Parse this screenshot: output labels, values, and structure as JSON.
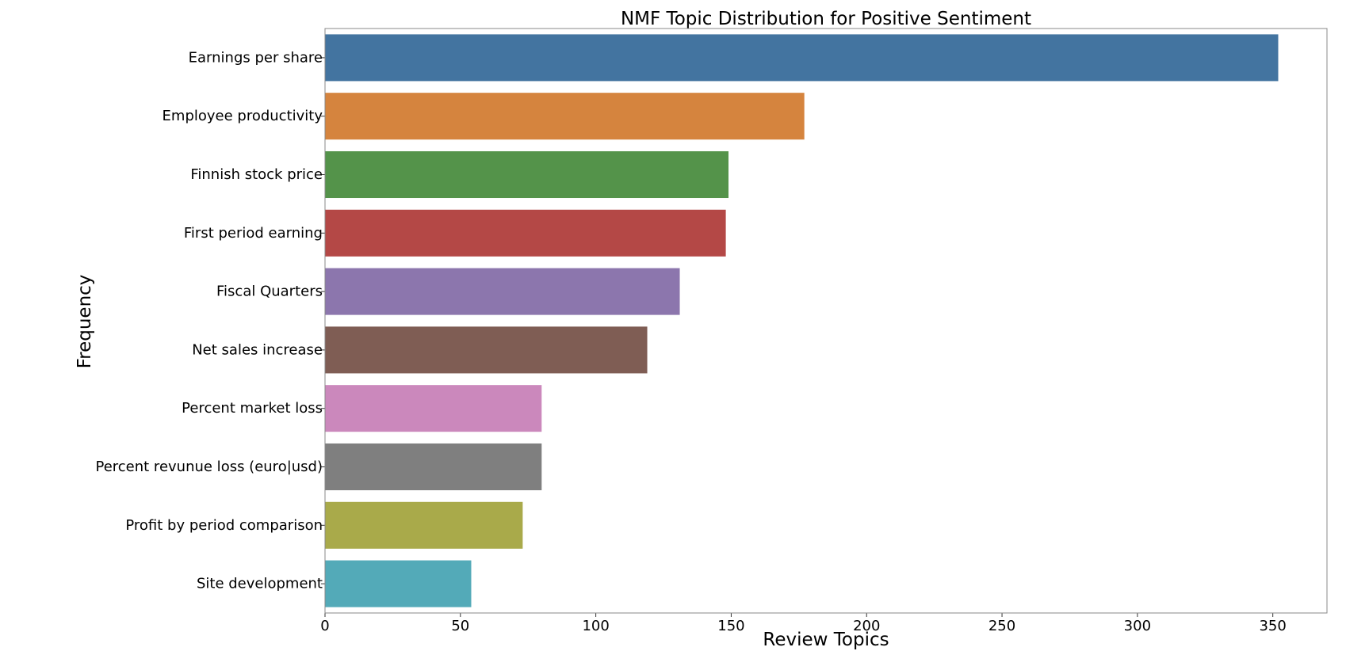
{
  "chart_data": {
    "type": "bar",
    "orientation": "horizontal",
    "title": "NMF Topic Distribution for Positive Sentiment",
    "xlabel": "Review Topics",
    "ylabel": "Frequency",
    "categories": [
      "Earnings per share",
      "Employee productivity",
      "Finnish stock price",
      "First period earning",
      "Fiscal Quarters",
      "Net sales increase",
      "Percent market loss",
      "Percent revunue loss (euro|usd)",
      "Profit by period comparison",
      "Site development"
    ],
    "values": [
      352,
      177,
      149,
      148,
      131,
      119,
      80,
      80,
      73,
      54
    ],
    "colors": [
      "#4374a0",
      "#d5843e",
      "#54934a",
      "#b44846",
      "#8c76ad",
      "#7f5d54",
      "#cb88bc",
      "#7f7f7f",
      "#a9aa4a",
      "#53aab8"
    ],
    "xlim": [
      0,
      370
    ],
    "xticks": [
      0,
      50,
      100,
      150,
      200,
      250,
      300,
      350
    ],
    "grid": false,
    "legend": "none"
  }
}
